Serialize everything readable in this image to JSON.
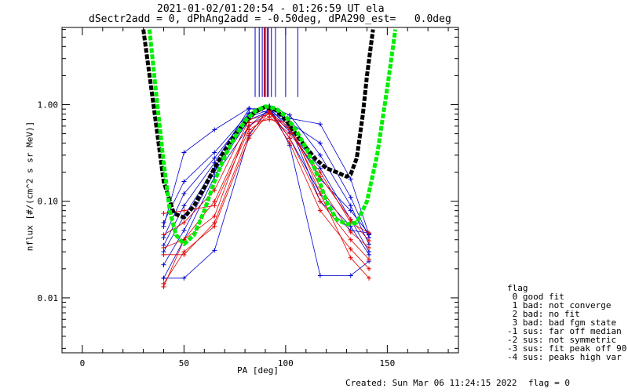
{
  "header": {
    "title_line1": "2021-01-02/01:20:54 - 01:26:59 UT ela",
    "title_line2": "dSectr2add = 0, dPhAng2add = -0.50deg, dPA290_est=   0.0deg"
  },
  "footer": {
    "created": "Created: Sun Mar 06 11:24:15 2022",
    "flag": "flag = 0"
  },
  "legend": {
    "title": "flag",
    "items": [
      " 0 good fit",
      " 1 bad: not converge",
      " 2 bad: no fit",
      " 3 bad: bad fgm state",
      "-1 sus: far off median",
      "-2 sus: not symmetric",
      "-3 sus: fit peak off 90",
      "-4 sus: peaks high var"
    ]
  },
  "colors": {
    "loss_cone_curves": "#0000cc",
    "anti_loss_cone_curves": "#dd0000",
    "fit_black": "#000000",
    "fit_green": "#00ee00",
    "axes": "#000000"
  },
  "chart_data": {
    "type": "line",
    "title": "2021-01-02/01:20:54 - 01:26:59 UT ela",
    "subtitle": "dSectr2add = 0, dPhAng2add = -0.50deg, dPA290_est=   0.0deg",
    "xlabel": "PA [deg]",
    "ylabel": "nflux [#/(cm^2 s sr MeV)]",
    "xlim": [
      -10,
      185
    ],
    "ylim": [
      0.0027,
      6.3
    ],
    "yscale": "log",
    "xticks": [
      0,
      50,
      100,
      150
    ],
    "yticks": [
      0.01,
      0.1,
      1.0
    ],
    "ytick_labels": [
      "0.01",
      "0.10",
      "1.00"
    ],
    "grid": false,
    "legend_position": "bottom-right outside",
    "series": [
      {
        "color": "blue",
        "x": [
          40,
          50,
          65,
          82,
          92,
          102,
          117,
          132,
          141
        ],
        "y": [
          0.055,
          0.32,
          0.55,
          0.92,
          0.82,
          0.72,
          0.63,
          0.17,
          0.045
        ]
      },
      {
        "color": "blue",
        "x": [
          40,
          50,
          65,
          82,
          92,
          102,
          117,
          132,
          141
        ],
        "y": [
          0.042,
          0.12,
          0.28,
          0.8,
          0.96,
          0.65,
          0.4,
          0.11,
          0.042
        ]
      },
      {
        "color": "blue",
        "x": [
          40,
          50,
          65,
          82,
          92,
          102,
          117,
          132,
          141
        ],
        "y": [
          0.03,
          0.07,
          0.22,
          0.75,
          0.88,
          0.52,
          0.22,
          0.065,
          0.03
        ]
      },
      {
        "color": "blue",
        "x": [
          40,
          50,
          65,
          82,
          92,
          102,
          117,
          132,
          141
        ],
        "y": [
          0.016,
          0.04,
          0.18,
          0.6,
          0.9,
          0.6,
          0.1,
          0.05,
          0.047
        ]
      },
      {
        "color": "blue",
        "x": [
          40,
          50,
          65,
          82,
          92,
          102,
          117,
          132,
          141
        ],
        "y": [
          0.016,
          0.016,
          0.031,
          0.48,
          0.95,
          0.38,
          0.017,
          0.017,
          0.024
        ]
      },
      {
        "color": "blue",
        "x": [
          40,
          50,
          65,
          82,
          92,
          102,
          117,
          132,
          141
        ],
        "y": [
          0.06,
          0.16,
          0.32,
          0.82,
          0.97,
          0.78,
          0.3,
          0.09,
          0.036
        ]
      },
      {
        "color": "blue",
        "x": [
          40,
          50,
          65,
          82,
          92,
          102,
          117,
          132,
          141
        ],
        "y": [
          0.035,
          0.09,
          0.25,
          0.9,
          0.93,
          0.55,
          0.17,
          0.08,
          0.046
        ]
      },
      {
        "color": "blue",
        "x": [
          40,
          50,
          65,
          82,
          92,
          102,
          117,
          132,
          141
        ],
        "y": [
          0.022,
          0.05,
          0.2,
          0.7,
          0.85,
          0.45,
          0.12,
          0.055,
          0.028
        ]
      },
      {
        "color": "red",
        "x": [
          40,
          50,
          65,
          82,
          92,
          102,
          117,
          132,
          141
        ],
        "y": [
          0.075,
          0.08,
          0.09,
          0.55,
          0.75,
          0.5,
          0.2,
          0.06,
          0.047
        ]
      },
      {
        "color": "red",
        "x": [
          40,
          50,
          65,
          82,
          92,
          102,
          117,
          132,
          141
        ],
        "y": [
          0.033,
          0.04,
          0.1,
          0.6,
          0.82,
          0.58,
          0.14,
          0.048,
          0.033
        ]
      },
      {
        "color": "red",
        "x": [
          40,
          50,
          65,
          82,
          92,
          102,
          117,
          132,
          141
        ],
        "y": [
          0.028,
          0.028,
          0.06,
          0.5,
          0.88,
          0.45,
          0.1,
          0.04,
          0.025
        ]
      },
      {
        "color": "red",
        "x": [
          40,
          50,
          65,
          82,
          92,
          102,
          117,
          132,
          141
        ],
        "y": [
          0.014,
          0.03,
          0.055,
          0.45,
          0.85,
          0.4,
          0.08,
          0.032,
          0.02
        ]
      },
      {
        "color": "red",
        "x": [
          40,
          50,
          65,
          82,
          92,
          102,
          117,
          132,
          141
        ],
        "y": [
          0.013,
          0.04,
          0.07,
          0.65,
          0.7,
          0.65,
          0.12,
          0.026,
          0.016
        ]
      },
      {
        "color": "red",
        "x": [
          40,
          50,
          65,
          82,
          92,
          102,
          117,
          132,
          141
        ],
        "y": [
          0.045,
          0.06,
          0.13,
          0.7,
          0.8,
          0.55,
          0.18,
          0.065,
          0.039
        ]
      }
    ],
    "fits": [
      {
        "color": "black",
        "x": [
          30,
          35,
          40,
          45,
          50,
          55,
          60,
          65,
          70,
          75,
          80,
          85,
          90,
          95,
          100,
          105,
          110,
          115,
          120,
          125,
          130,
          132,
          135,
          138,
          140,
          143
        ],
        "y": [
          6.0,
          1.0,
          0.16,
          0.075,
          0.068,
          0.09,
          0.14,
          0.22,
          0.33,
          0.48,
          0.66,
          0.84,
          0.95,
          0.88,
          0.7,
          0.5,
          0.36,
          0.27,
          0.22,
          0.2,
          0.18,
          0.19,
          0.28,
          0.8,
          2.0,
          6.0
        ]
      },
      {
        "color": "green",
        "x": [
          33,
          36,
          40,
          43,
          46,
          50,
          55,
          60,
          65,
          70,
          75,
          80,
          85,
          90,
          95,
          100,
          105,
          110,
          115,
          120,
          125,
          130,
          135,
          140,
          145,
          150,
          154
        ],
        "y": [
          6.0,
          1.5,
          0.25,
          0.08,
          0.045,
          0.036,
          0.045,
          0.08,
          0.16,
          0.29,
          0.46,
          0.68,
          0.86,
          0.96,
          0.92,
          0.76,
          0.55,
          0.36,
          0.2,
          0.1,
          0.065,
          0.058,
          0.06,
          0.1,
          0.3,
          1.5,
          6.0
        ]
      }
    ],
    "vertical_markers": {
      "blue": [
        85,
        87,
        88.5,
        90,
        91.5,
        93,
        95,
        100,
        106
      ],
      "red": [
        89.5,
        91
      ],
      "y_range": [
        1.2,
        6.3
      ]
    }
  }
}
